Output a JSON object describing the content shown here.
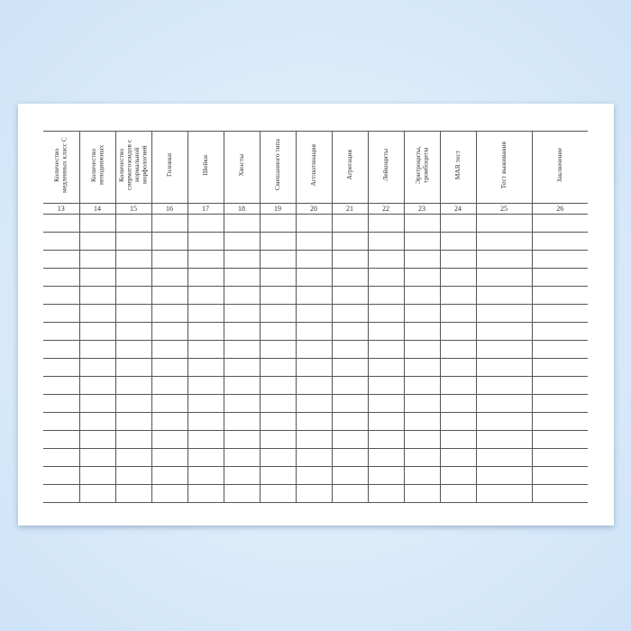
{
  "table": {
    "headers": [
      "Количество медленных класс С",
      "Количество неподвижных",
      "Количество сперматозоидов с нормальной морфологией",
      "Головки",
      "Шейки",
      "Хвосты",
      "Смешанного типа",
      "Агглютинация",
      "Агрегация",
      "Лейкоциты",
      "Эритроциты, тромбоциты",
      "MAR тест",
      "Тест выживания",
      "Заключение"
    ],
    "numbers": [
      13,
      14,
      15,
      16,
      17,
      18,
      19,
      20,
      21,
      22,
      23,
      24,
      25,
      26
    ]
  }
}
